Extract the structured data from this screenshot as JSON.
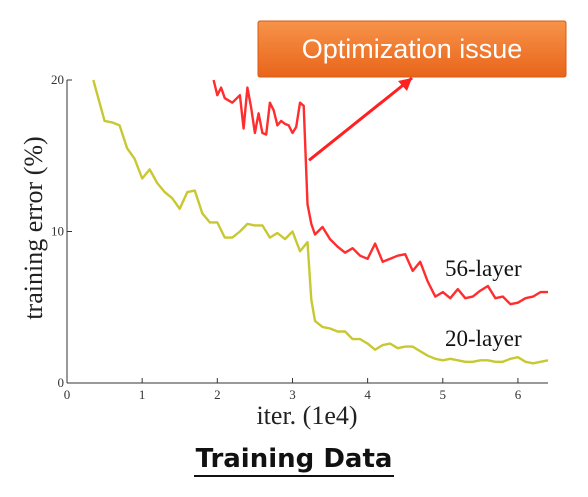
{
  "chart_data": {
    "type": "line",
    "title": "",
    "xlabel": "iter. (1e4)",
    "ylabel": "training error (%)",
    "xlim": [
      0,
      6.4
    ],
    "ylim": [
      0,
      20
    ],
    "x_ticks": [
      "0",
      "1",
      "2",
      "3",
      "4",
      "5",
      "6"
    ],
    "y_ticks": [
      "0",
      "10",
      "20"
    ],
    "grid": false,
    "series": [
      {
        "name": "56-layer",
        "color": "#ff2d2d",
        "x": [
          1.95,
          2.0,
          2.05,
          2.1,
          2.2,
          2.3,
          2.35,
          2.4,
          2.45,
          2.5,
          2.55,
          2.6,
          2.65,
          2.7,
          2.75,
          2.8,
          2.85,
          2.9,
          2.95,
          3.0,
          3.05,
          3.1,
          3.15,
          3.2,
          3.25,
          3.3,
          3.4,
          3.5,
          3.6,
          3.7,
          3.8,
          3.9,
          4.0,
          4.1,
          4.2,
          4.3,
          4.4,
          4.5,
          4.6,
          4.7,
          4.8,
          4.9,
          5.0,
          5.1,
          5.2,
          5.3,
          5.4,
          5.5,
          5.6,
          5.7,
          5.8,
          5.9,
          6.0,
          6.1,
          6.2,
          6.3,
          6.4
        ],
        "values": [
          20.0,
          19.0,
          19.5,
          18.8,
          18.5,
          19.0,
          16.8,
          19.5,
          18.2,
          16.5,
          17.8,
          16.5,
          16.4,
          18.5,
          18.0,
          17.0,
          17.3,
          17.1,
          17.0,
          16.5,
          16.9,
          18.5,
          18.3,
          11.8,
          10.5,
          9.8,
          10.3,
          9.5,
          9.0,
          8.6,
          8.9,
          8.4,
          8.2,
          9.2,
          8.0,
          8.2,
          8.4,
          8.5,
          7.4,
          8.0,
          6.7,
          5.7,
          6.0,
          5.6,
          6.2,
          5.6,
          5.7,
          6.1,
          6.4,
          5.6,
          5.7,
          5.2,
          5.3,
          5.6,
          5.7,
          6.0,
          6.0
        ]
      },
      {
        "name": "20-layer",
        "color": "#c8c832",
        "x": [
          0.35,
          0.5,
          0.6,
          0.7,
          0.8,
          0.9,
          1.0,
          1.1,
          1.2,
          1.3,
          1.4,
          1.5,
          1.6,
          1.7,
          1.8,
          1.9,
          2.0,
          2.1,
          2.2,
          2.3,
          2.4,
          2.5,
          2.6,
          2.7,
          2.8,
          2.9,
          3.0,
          3.1,
          3.15,
          3.2,
          3.25,
          3.3,
          3.4,
          3.5,
          3.6,
          3.7,
          3.8,
          3.9,
          4.0,
          4.1,
          4.2,
          4.3,
          4.4,
          4.5,
          4.6,
          4.7,
          4.8,
          4.9,
          5.0,
          5.1,
          5.2,
          5.3,
          5.4,
          5.5,
          5.6,
          5.7,
          5.8,
          5.9,
          6.0,
          6.1,
          6.2,
          6.3,
          6.4
        ],
        "values": [
          20.0,
          17.3,
          17.2,
          17.0,
          15.5,
          14.8,
          13.5,
          14.1,
          13.2,
          12.6,
          12.2,
          11.5,
          12.6,
          12.7,
          11.2,
          10.6,
          10.6,
          9.6,
          9.6,
          10.0,
          10.5,
          10.4,
          10.4,
          9.6,
          9.9,
          9.5,
          10.0,
          8.7,
          9.0,
          9.3,
          5.5,
          4.1,
          3.7,
          3.6,
          3.4,
          3.4,
          2.9,
          2.9,
          2.6,
          2.2,
          2.5,
          2.6,
          2.3,
          2.4,
          2.4,
          2.1,
          1.8,
          1.6,
          1.5,
          1.6,
          1.5,
          1.4,
          1.4,
          1.5,
          1.5,
          1.4,
          1.4,
          1.6,
          1.7,
          1.4,
          1.3,
          1.4,
          1.5
        ]
      }
    ],
    "annotation": {
      "text": "Optimization issue",
      "box_color": "#f07b2a",
      "arrow_color": "#ff2020",
      "arrow_target_x": 3.22,
      "arrow_target_y": 14.7
    }
  },
  "caption": "Training Data"
}
